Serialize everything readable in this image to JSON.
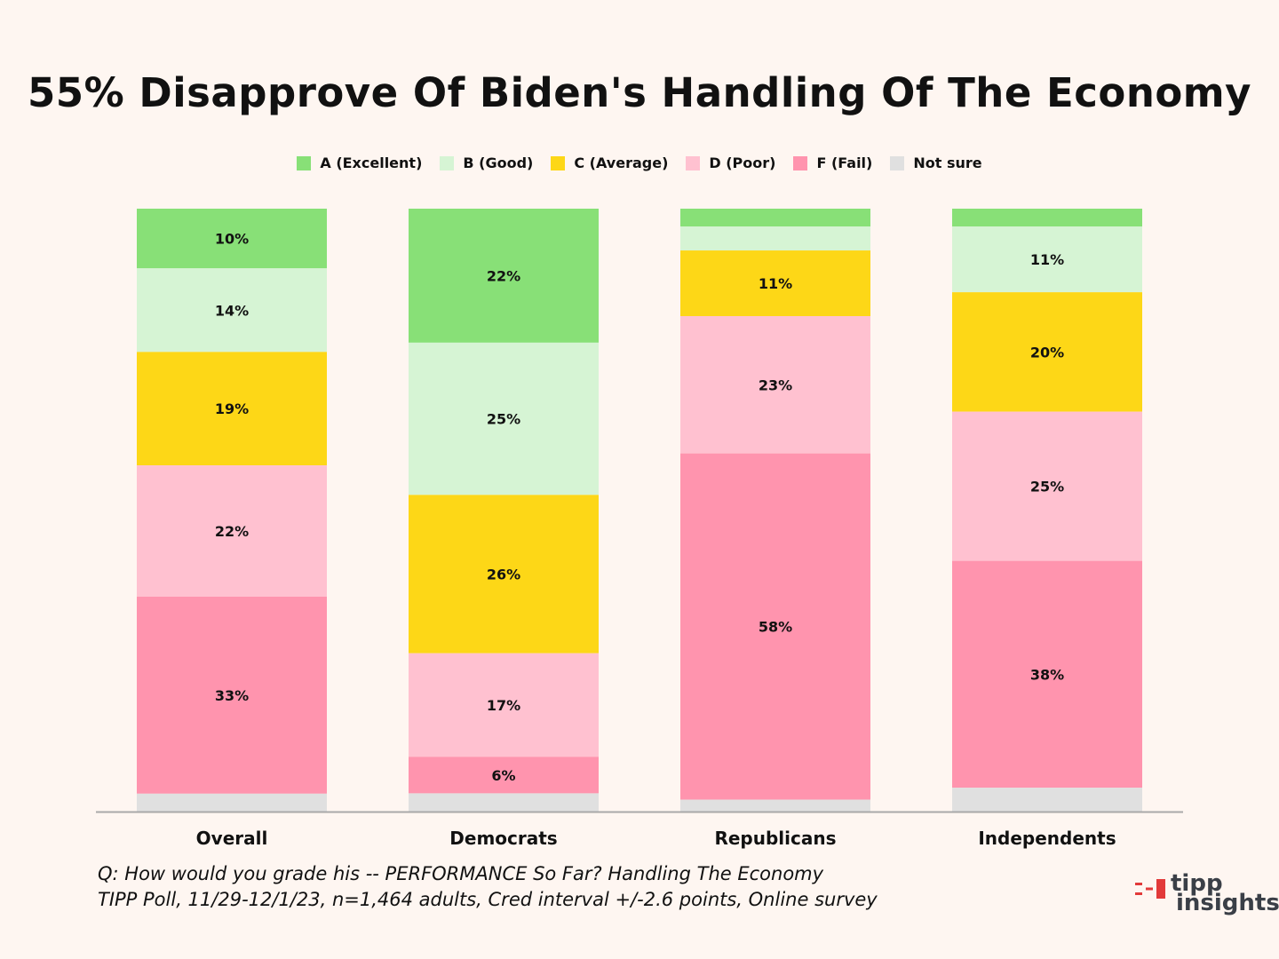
{
  "chart_data": {
    "type": "bar",
    "stacked": true,
    "title": "55% Disapprove Of Biden's Handling Of The Economy",
    "categories": [
      "Overall",
      "Democrats",
      "Republicans",
      "Independents"
    ],
    "series": [
      {
        "name": "A (Excellent)",
        "color": "#88e077",
        "values": [
          10,
          22,
          3,
          3
        ],
        "labels": [
          "10%",
          "22%",
          "",
          ""
        ]
      },
      {
        "name": "B (Good)",
        "color": "#d6f4d4",
        "values": [
          14,
          25,
          4,
          11
        ],
        "labels": [
          "14%",
          "25%",
          "",
          "11%"
        ]
      },
      {
        "name": "C (Average)",
        "color": "#fdd717",
        "values": [
          19,
          26,
          11,
          20
        ],
        "labels": [
          "19%",
          "26%",
          "11%",
          "20%"
        ]
      },
      {
        "name": "D (Poor)",
        "color": "#ffc1d0",
        "values": [
          22,
          17,
          23,
          25
        ],
        "labels": [
          "22%",
          "17%",
          "23%",
          "25%"
        ]
      },
      {
        "name": "F (Fail)",
        "color": "#ff94ae",
        "values": [
          33,
          6,
          58,
          38
        ],
        "labels": [
          "33%",
          "6%",
          "58%",
          "38%"
        ]
      },
      {
        "name": "Not sure",
        "color": "#e0e0e0",
        "values": [
          3,
          3,
          2,
          4
        ],
        "labels": [
          "",
          "",
          "",
          ""
        ]
      }
    ],
    "legend_position": "top-center",
    "ylim": [
      0,
      100
    ],
    "grid": false
  },
  "footnote": {
    "line1": "Q:  How would you grade his -- PERFORMANCE So Far? Handling The Economy",
    "line2": "TIPP Poll, 11/29-12/1/23, n=1,464 adults, Cred interval +/-2.6 points, Online survey"
  },
  "logo": {
    "line1": "tipp",
    "line2": "insights",
    "accent": "#e23a3a",
    "text_color": "#3a3f47"
  }
}
